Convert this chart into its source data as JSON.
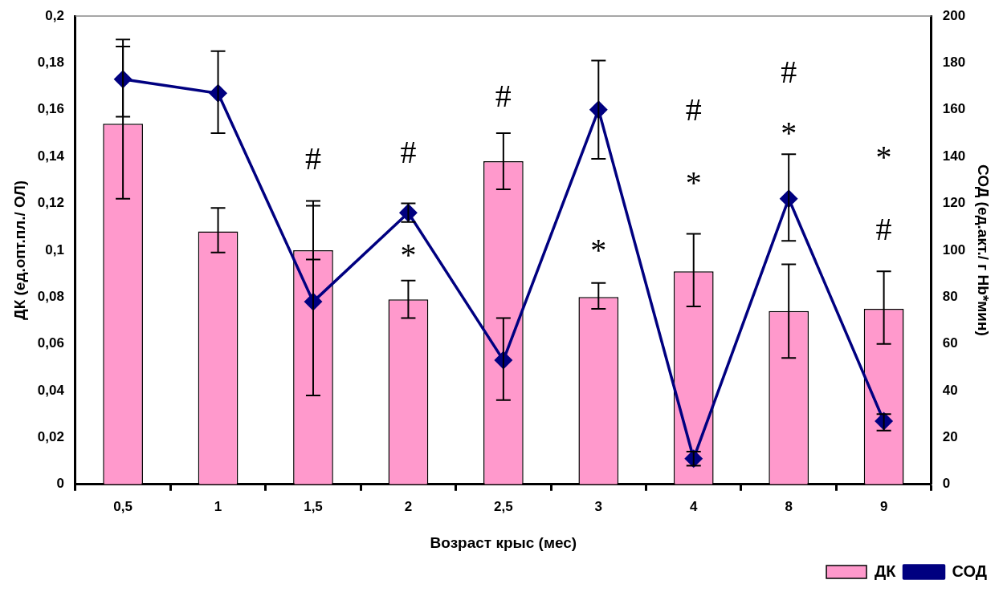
{
  "chart_data": {
    "type": "bar",
    "xlabel": "Возраст крыс (мес)",
    "ylabel": "ДК (ед.опт.пл./ ОЛ)",
    "y2label": "СОД (ед.акт./ г Hb*мин)",
    "categories": [
      "0,5",
      "1",
      "1,5",
      "2",
      "2,5",
      "3",
      "4",
      "8",
      "9"
    ],
    "series": [
      {
        "name": "ДК",
        "color": "#ff99cc",
        "values": [
          0.154,
          0.108,
          0.1,
          0.079,
          0.138,
          0.08,
          0.091,
          0.074,
          0.075
        ],
        "errors": [
          [
            0.122,
            0.187
          ],
          [
            0.099,
            0.118
          ],
          [
            0.096,
            0.119
          ],
          [
            0.071,
            0.087
          ],
          [
            0.126,
            0.15
          ],
          [
            0.075,
            0.086
          ],
          [
            0.076,
            0.107
          ],
          [
            0.054,
            0.094
          ],
          [
            0.06,
            0.091
          ]
        ]
      },
      {
        "name": "СОД",
        "type": "line",
        "axis": "y2",
        "color": "#000080",
        "marker": "diamond",
        "values": [
          173,
          167,
          78,
          116,
          53,
          160,
          11,
          122,
          27
        ],
        "errors": [
          [
            157,
            190
          ],
          [
            150,
            185
          ],
          [
            38,
            121
          ],
          [
            112,
            120
          ],
          [
            36,
            71
          ],
          [
            139,
            181
          ],
          [
            8,
            14
          ],
          [
            104,
            141
          ],
          [
            23,
            30
          ]
        ]
      }
    ],
    "ylim": [
      0,
      0.2
    ],
    "yticks": [
      {
        "value": 0,
        "label": "0"
      },
      {
        "value": 0.02,
        "label": "0,02"
      },
      {
        "value": 0.04,
        "label": "0,04"
      },
      {
        "value": 0.06,
        "label": "0,06"
      },
      {
        "value": 0.08,
        "label": "0,08"
      },
      {
        "value": 0.1,
        "label": "0,1"
      },
      {
        "value": 0.12,
        "label": "0,12"
      },
      {
        "value": 0.14,
        "label": "0,14"
      },
      {
        "value": 0.16,
        "label": "0,16"
      },
      {
        "value": 0.18,
        "label": "0,18"
      },
      {
        "value": 0.2,
        "label": "0,2"
      }
    ],
    "y2lim": [
      0,
      200
    ],
    "y2ticks": [
      0,
      20,
      40,
      60,
      80,
      100,
      120,
      140,
      160,
      180,
      200
    ],
    "annotations": [
      "#",
      "#",
      "*",
      "#",
      "*",
      "#",
      "*",
      "#",
      "*",
      "*",
      "#"
    ],
    "legend": "bottom right",
    "grid": false
  }
}
